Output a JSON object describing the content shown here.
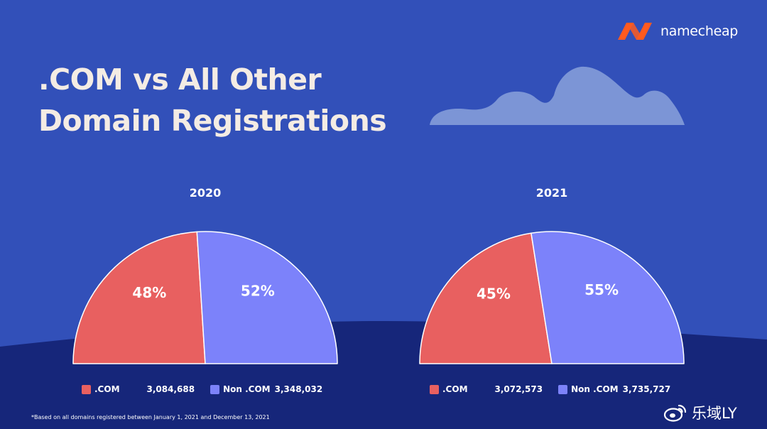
{
  "title": {
    "line1": ".COM vs All Other",
    "line2": "Domain Registrations"
  },
  "brand": {
    "name": "namecheap",
    "logo_color": "#ff5a1f"
  },
  "colors": {
    "background": "#3250b9",
    "ground": "#16267a",
    "com": "#e86060",
    "non_com": "#7c82fa",
    "cloud": "#7c95d6"
  },
  "legend_labels": {
    "com": ".COM",
    "non_com": "Non .COM"
  },
  "chart_data": [
    {
      "type": "pie",
      "title": "2020",
      "labels": [
        ".COM",
        "Non .COM"
      ],
      "values": [
        3084688,
        3348032
      ],
      "display_values": [
        "3,084,688",
        "3,348,032"
      ],
      "percent_labels": [
        "48%",
        "52%"
      ],
      "percentages": [
        48,
        52
      ],
      "layout": "half-pie (semicircle), .COM on left, legend below"
    },
    {
      "type": "pie",
      "title": "2021",
      "labels": [
        ".COM",
        "Non .COM"
      ],
      "values": [
        3072573,
        3735727
      ],
      "display_values": [
        "3,072,573",
        "3,735,727"
      ],
      "percent_labels": [
        "45%",
        "55%"
      ],
      "percentages": [
        45,
        55
      ],
      "layout": "half-pie (semicircle), .COM on left, legend below"
    }
  ],
  "footnote": "*Based on all domains registered between January 1, 2021 and December 13, 2021",
  "watermark": "乐域LY"
}
